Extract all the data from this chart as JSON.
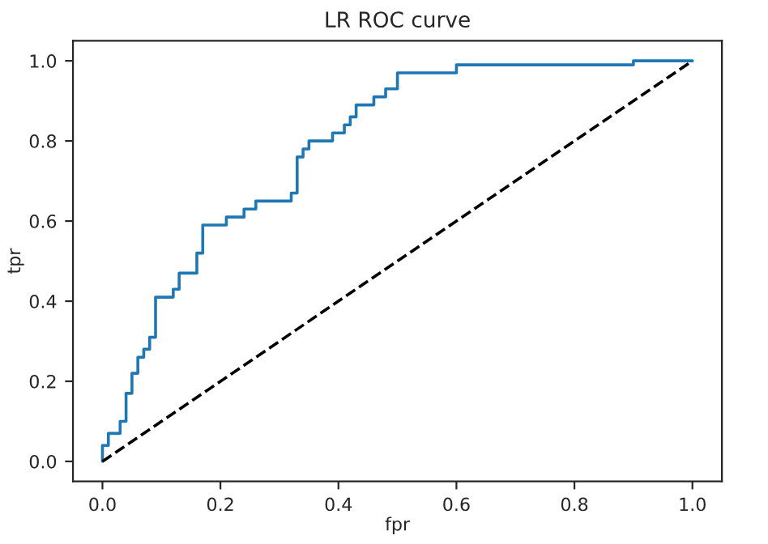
{
  "chart_data": {
    "type": "step",
    "title": "LR ROC curve",
    "xlabel": "fpr",
    "ylabel": "tpr",
    "xlim": [
      -0.05,
      1.05
    ],
    "ylim": [
      -0.05,
      1.05
    ],
    "xticks": [
      {
        "value": 0,
        "label": "0.0"
      },
      {
        "value": 0.2,
        "label": "0.2"
      },
      {
        "value": 0.4,
        "label": "0.4"
      },
      {
        "value": 0.6,
        "label": "0.6"
      },
      {
        "value": 0.8,
        "label": "0.8"
      },
      {
        "value": 1,
        "label": "1.0"
      }
    ],
    "yticks": [
      {
        "value": 0,
        "label": "0.0"
      },
      {
        "value": 0.2,
        "label": "0.2"
      },
      {
        "value": 0.4,
        "label": "0.4"
      },
      {
        "value": 0.6,
        "label": "0.6"
      },
      {
        "value": 0.8,
        "label": "0.8"
      },
      {
        "value": 1,
        "label": "1.0"
      }
    ],
    "grid": false,
    "series": [
      {
        "color": "#1f77b4",
        "line_style": "solid",
        "x": [
          0,
          0,
          0.01,
          0.03,
          0.04,
          0.05,
          0.06,
          0.07,
          0.08,
          0.09,
          0.12,
          0.13,
          0.16,
          0.17,
          0.21,
          0.24,
          0.26,
          0.32,
          0.33,
          0.34,
          0.35,
          0.39,
          0.41,
          0.42,
          0.43,
          0.46,
          0.48,
          0.5,
          0.6,
          0.9,
          1.0
        ],
        "values": [
          0,
          0.04,
          0.07,
          0.1,
          0.17,
          0.22,
          0.26,
          0.28,
          0.31,
          0.41,
          0.43,
          0.47,
          0.52,
          0.59,
          0.61,
          0.63,
          0.65,
          0.67,
          0.76,
          0.78,
          0.8,
          0.82,
          0.84,
          0.86,
          0.89,
          0.91,
          0.93,
          0.97,
          0.99,
          1.0,
          1.0
        ]
      },
      {
        "type": "line",
        "color": "#000000",
        "line_style": "dashed",
        "x": [
          0,
          1
        ],
        "values": [
          0,
          1
        ]
      }
    ]
  }
}
